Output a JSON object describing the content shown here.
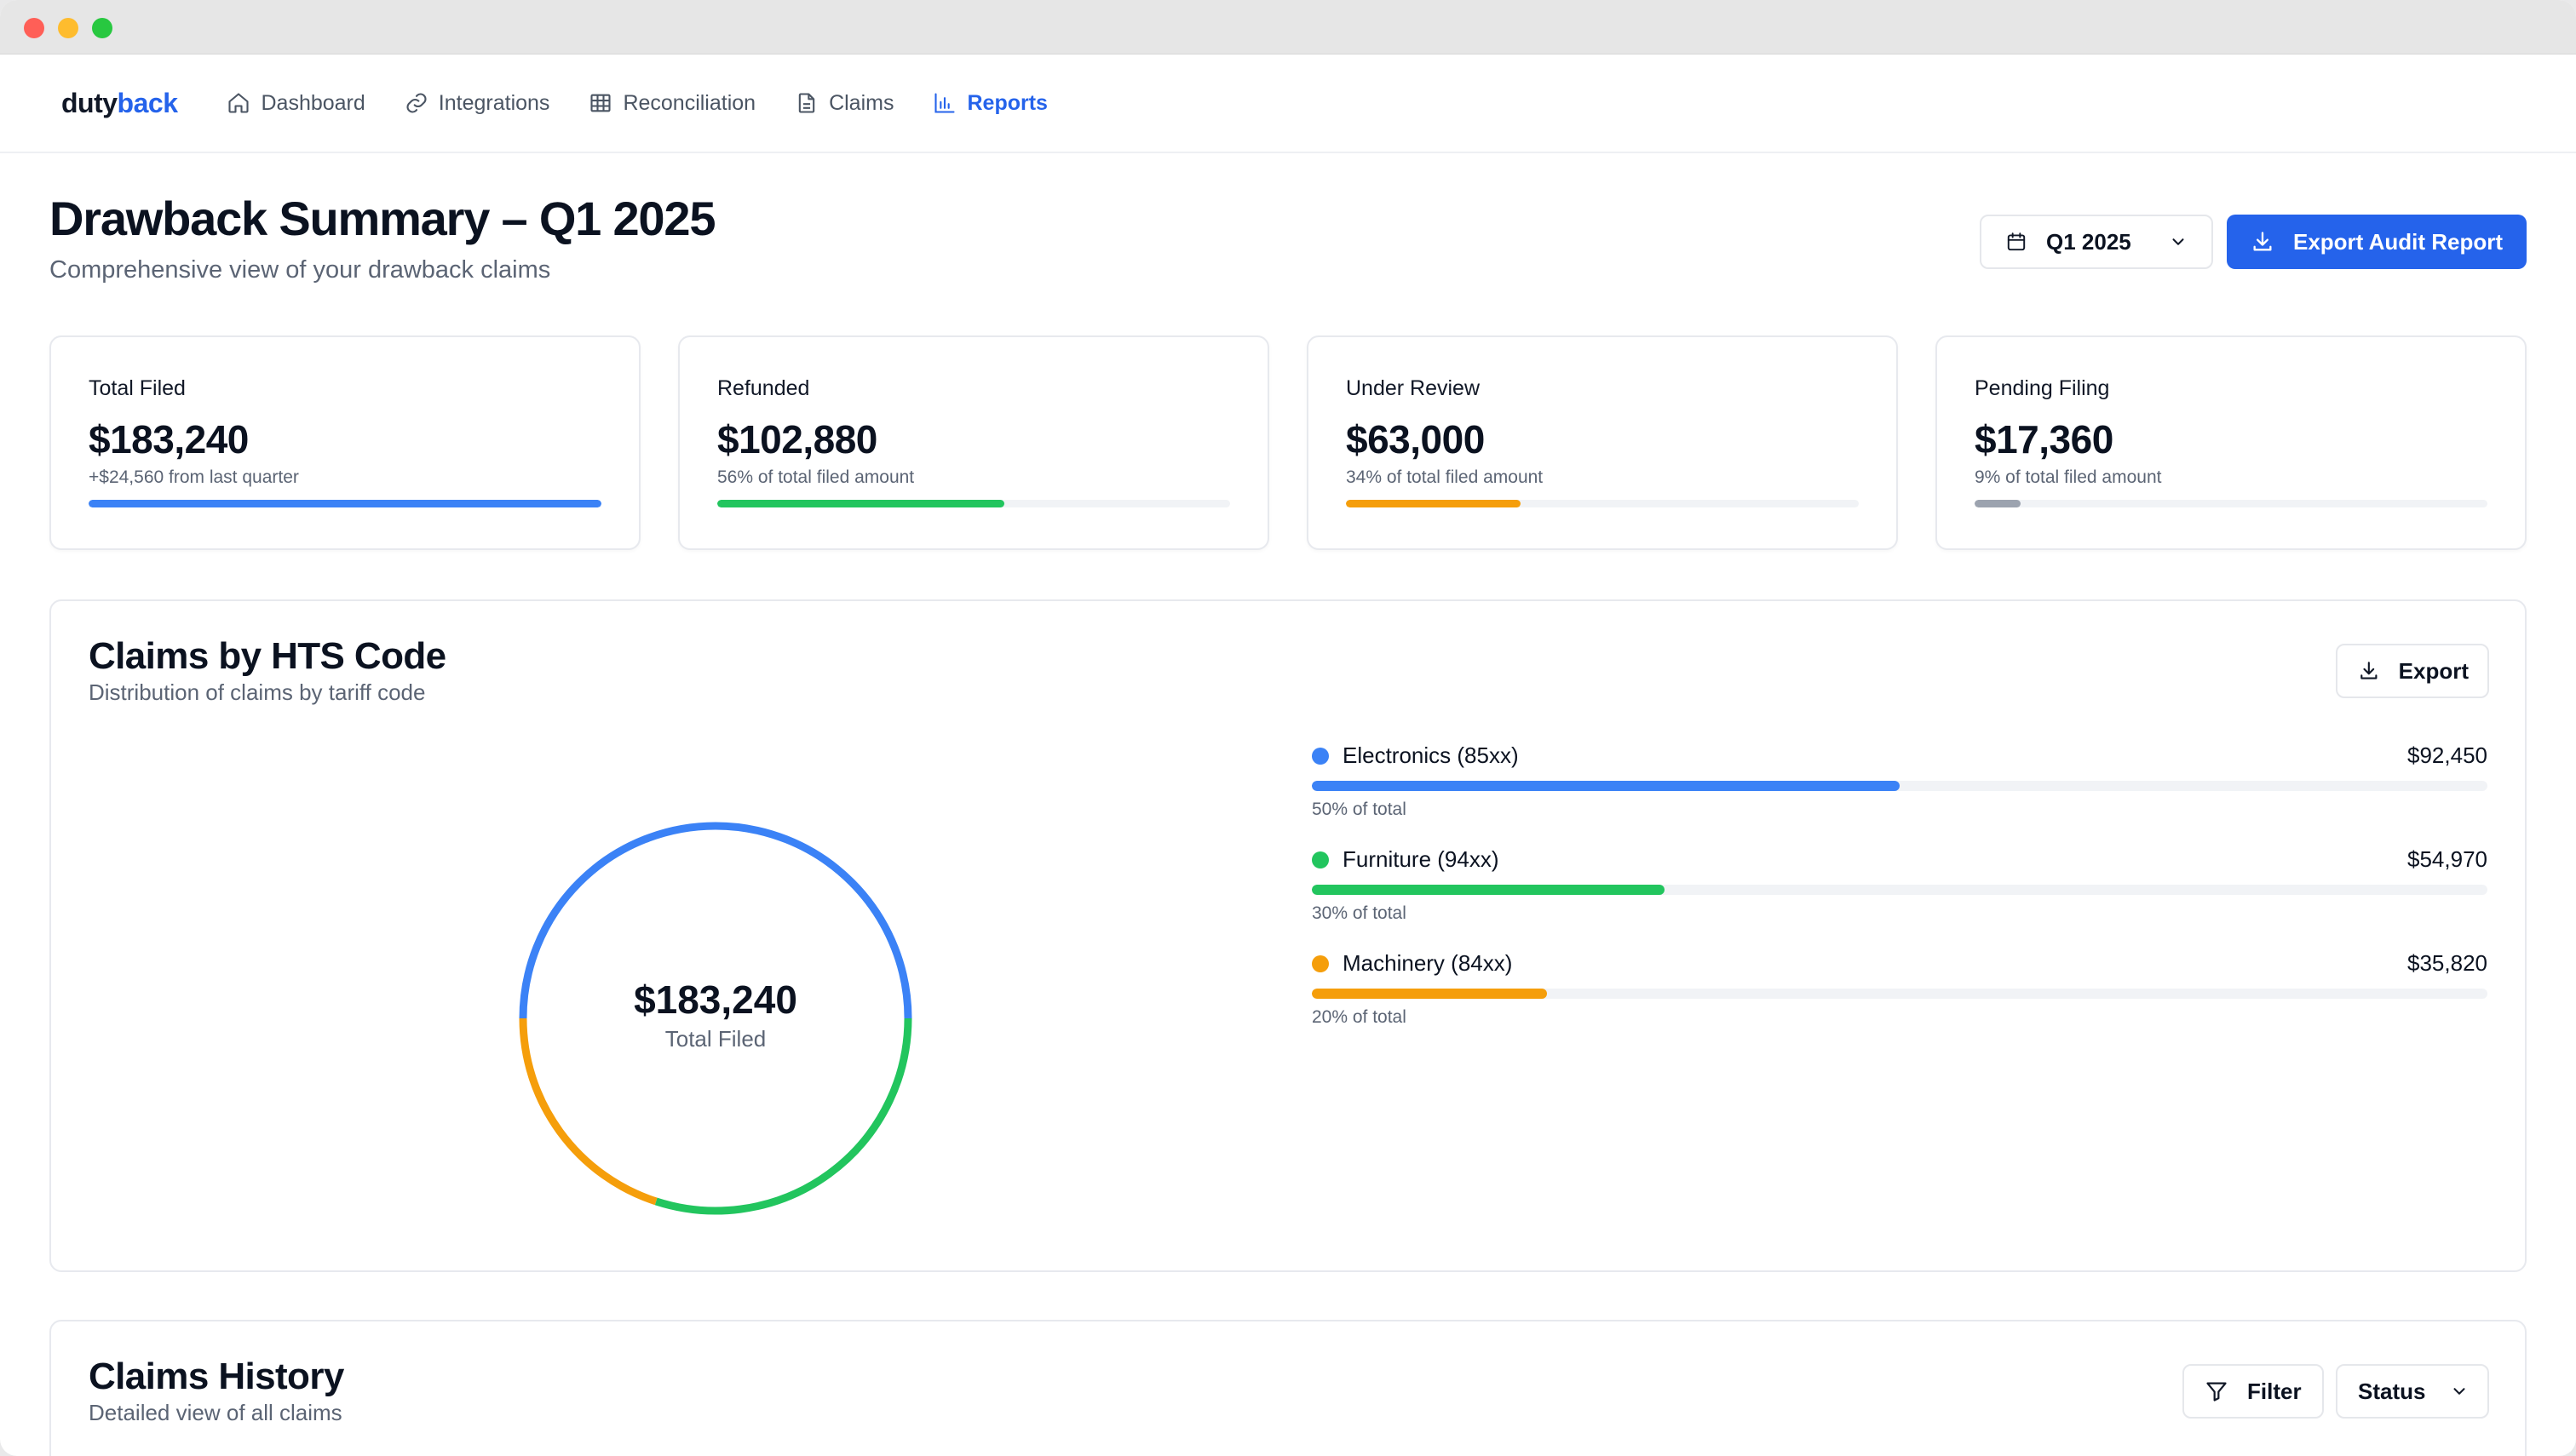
{
  "window": {
    "controls": [
      "close",
      "minimize",
      "zoom"
    ]
  },
  "nav": {
    "logo_part1": "duty",
    "logo_part2": "back",
    "items": [
      {
        "label": "Dashboard",
        "icon": "home-icon",
        "active": false
      },
      {
        "label": "Integrations",
        "icon": "link-icon",
        "active": false
      },
      {
        "label": "Reconciliation",
        "icon": "table-icon",
        "active": false
      },
      {
        "label": "Claims",
        "icon": "document-icon",
        "active": false
      },
      {
        "label": "Reports",
        "icon": "bar-chart-icon",
        "active": true
      }
    ]
  },
  "header": {
    "title": "Drawback Summary – Q1 2025",
    "subtitle": "Comprehensive view of your drawback claims",
    "period": "Q1 2025",
    "export_label": "Export Audit Report"
  },
  "stats": [
    {
      "label": "Total Filed",
      "value": "$183,240",
      "note": "+$24,560 from last quarter",
      "progress": 1.0,
      "color": "#3b82f6"
    },
    {
      "label": "Refunded",
      "value": "$102,880",
      "note": "56% of total filed amount",
      "progress": 0.56,
      "color": "#22c55e"
    },
    {
      "label": "Under Review",
      "value": "$63,000",
      "note": "34% of total filed amount",
      "progress": 0.34,
      "color": "#f59e0b"
    },
    {
      "label": "Pending Filing",
      "value": "$17,360",
      "note": "9% of total filed amount",
      "progress": 0.09,
      "color": "#9ca3af"
    }
  ],
  "hts": {
    "title": "Claims by HTS Code",
    "subtitle": "Distribution of claims by tariff code",
    "export_label": "Export",
    "donut_value": "$183,240",
    "donut_label": "Total Filed",
    "items": [
      {
        "name": "Electronics (85xx)",
        "amount": "$92,450",
        "pct_label": "50% of total",
        "fraction": 0.5,
        "color": "#3b82f6"
      },
      {
        "name": "Furniture (94xx)",
        "amount": "$54,970",
        "pct_label": "30% of total",
        "fraction": 0.3,
        "color": "#22c55e"
      },
      {
        "name": "Machinery (84xx)",
        "amount": "$35,820",
        "pct_label": "20% of total",
        "fraction": 0.2,
        "color": "#f59e0b"
      }
    ]
  },
  "history": {
    "title": "Claims History",
    "subtitle": "Detailed view of all claims",
    "filter_label": "Filter",
    "status_label": "Status"
  }
}
